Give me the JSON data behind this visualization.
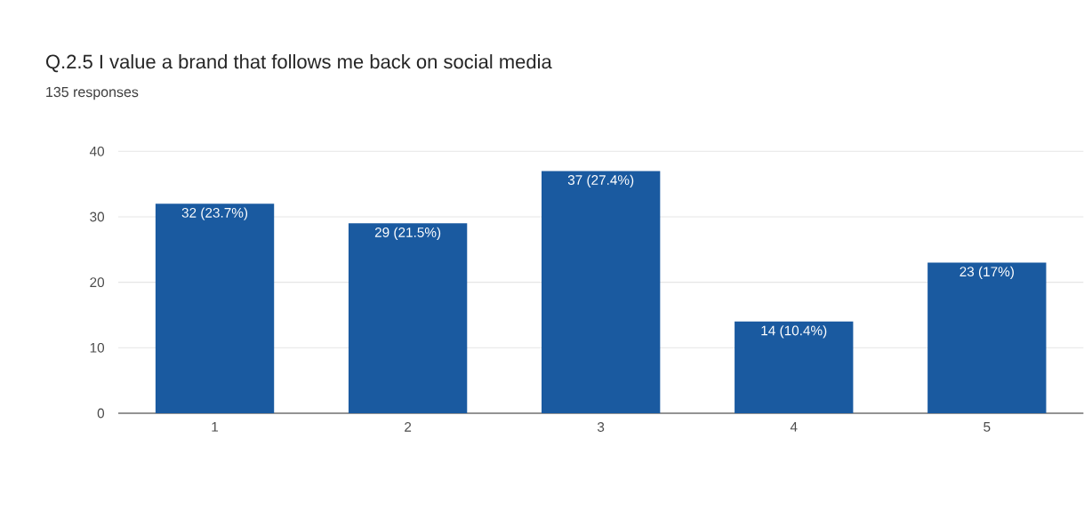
{
  "chart_data": {
    "type": "bar",
    "title": "Q.2.5 I value a brand that follows me back on social media",
    "subtitle": "135 responses",
    "categories": [
      "1",
      "2",
      "3",
      "4",
      "5"
    ],
    "values": [
      32,
      29,
      37,
      14,
      23
    ],
    "value_labels": [
      "32 (23.7%)",
      "29 (21.5%)",
      "37 (27.4%)",
      "14 (10.4%)",
      "23 (17%)"
    ],
    "color": "#1a5aa0",
    "ylim": [
      0,
      40
    ],
    "yticks": [
      0,
      10,
      20,
      30,
      40
    ],
    "grid": "y"
  }
}
